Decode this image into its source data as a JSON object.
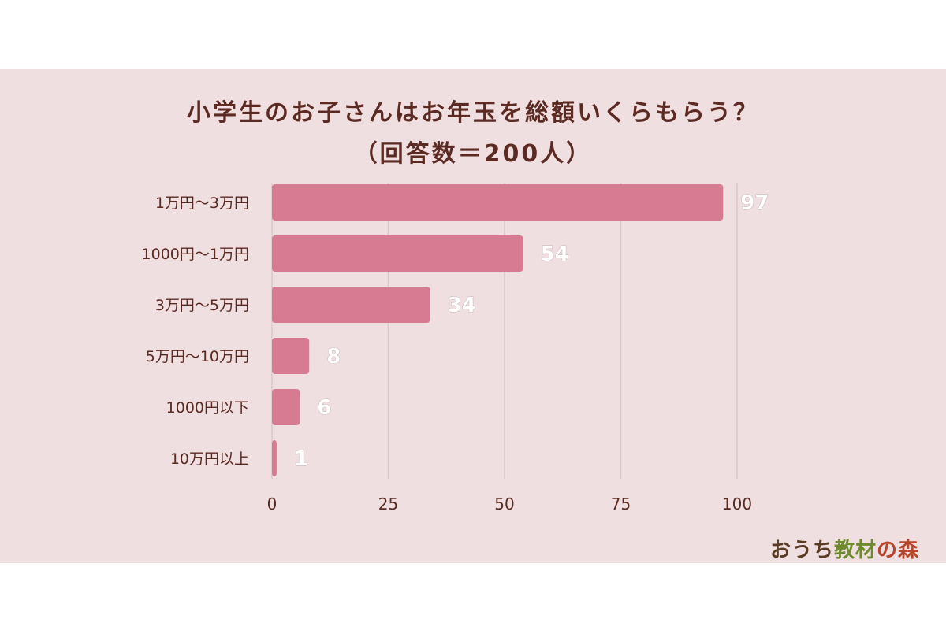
{
  "chart_data": {
    "type": "bar",
    "orientation": "horizontal",
    "title": "小学生のお子さんはお年玉を総額いくらもらう？",
    "subtitle": "（回答数＝200人）",
    "categories": [
      "1万円～3万円",
      "1000円～1万円",
      "3万円～5万円",
      "5万円～10万円",
      "1000円以下",
      "10万円以上"
    ],
    "values": [
      97,
      54,
      34,
      8,
      6,
      1
    ],
    "data_labels": [
      "97",
      "54",
      "34",
      "8",
      "6",
      "1"
    ],
    "xlim": [
      0,
      100
    ],
    "xticks": [
      0,
      25,
      50,
      75,
      100
    ],
    "xtick_labels": [
      "0",
      "25",
      "50",
      "75",
      "100"
    ],
    "grid": "vertical",
    "legend": "none",
    "bar_color": "#d67b92",
    "grid_color": "#dcc6c9",
    "label_color": "#5b2a22",
    "value_label_color": "#ffffff"
  },
  "logo": {
    "text": "おうち教材の森",
    "colors": [
      "#5a3b23",
      "#6e8a2e",
      "#b5452b"
    ]
  }
}
